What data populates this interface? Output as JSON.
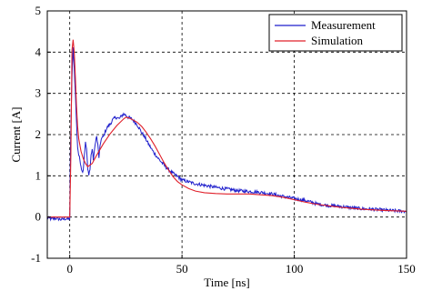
{
  "chart_data": {
    "type": "line",
    "xlabel": "Time [ns]",
    "ylabel": "Current [A]",
    "xlim": [
      -10,
      150
    ],
    "ylim": [
      -1,
      5
    ],
    "xticks": [
      0,
      50,
      100,
      150
    ],
    "yticks": [
      -1,
      0,
      1,
      2,
      3,
      4,
      5
    ],
    "grid": true,
    "legend_position": "top-right",
    "series": [
      {
        "name": "Measurement",
        "color": "#1f1fcc",
        "noisy": true,
        "x": [
          -10,
          -8,
          -6,
          -4,
          -2,
          -0.5,
          0,
          0.3,
          0.7,
          1.0,
          1.5,
          2.0,
          2.5,
          3,
          3.5,
          4,
          4.5,
          5,
          5.5,
          6,
          6.5,
          7,
          7.5,
          8,
          8.5,
          9,
          9.5,
          10,
          10.5,
          11,
          11.5,
          12,
          12.5,
          13,
          13.5,
          14,
          15,
          16,
          17,
          18,
          19,
          20,
          21,
          22,
          23,
          24,
          25,
          26,
          27,
          28,
          29,
          30,
          31,
          32,
          33,
          35,
          37,
          39,
          41,
          43,
          45,
          48,
          50,
          55,
          60,
          65,
          70,
          75,
          80,
          85,
          90,
          95,
          100,
          105,
          110,
          115,
          120,
          125,
          130,
          135,
          140,
          145,
          150
        ],
        "y": [
          -0.02,
          -0.05,
          -0.03,
          -0.06,
          -0.04,
          -0.05,
          -0.03,
          1.6,
          2.7,
          3.4,
          4.1,
          3.6,
          3.0,
          2.3,
          1.7,
          1.5,
          1.4,
          1.25,
          1.1,
          1.15,
          1.5,
          1.8,
          1.65,
          1.15,
          1.05,
          1.15,
          1.5,
          1.65,
          1.4,
          1.6,
          1.85,
          1.95,
          1.75,
          1.45,
          1.7,
          1.9,
          1.95,
          2.1,
          2.2,
          2.25,
          2.35,
          2.4,
          2.42,
          2.38,
          2.45,
          2.5,
          2.47,
          2.42,
          2.4,
          2.36,
          2.3,
          2.24,
          2.15,
          2.05,
          1.98,
          1.78,
          1.6,
          1.45,
          1.32,
          1.2,
          1.1,
          0.98,
          0.9,
          0.82,
          0.77,
          0.72,
          0.68,
          0.64,
          0.62,
          0.6,
          0.56,
          0.5,
          0.45,
          0.4,
          0.32,
          0.28,
          0.26,
          0.23,
          0.2,
          0.19,
          0.17,
          0.15,
          0.14
        ]
      },
      {
        "name": "Simulation",
        "color": "#e0202a",
        "noisy": false,
        "x": [
          -10,
          -2,
          0,
          0.5,
          1,
          1.5,
          2,
          2.5,
          3,
          3.5,
          4,
          5,
          6,
          7,
          8,
          10,
          12,
          15,
          18,
          21,
          24,
          25,
          26,
          28,
          30,
          32,
          34,
          36,
          38,
          40,
          42,
          44,
          46,
          48,
          50,
          53,
          56,
          60,
          65,
          70,
          75,
          80,
          85,
          90,
          95,
          100,
          105,
          110,
          120,
          130,
          140,
          150
        ],
        "y": [
          0,
          0,
          0,
          1.5,
          4.05,
          4.3,
          4.0,
          3.4,
          2.7,
          2.2,
          1.9,
          1.6,
          1.42,
          1.3,
          1.22,
          1.3,
          1.5,
          1.78,
          2.02,
          2.22,
          2.38,
          2.42,
          2.41,
          2.36,
          2.3,
          2.2,
          2.06,
          1.9,
          1.72,
          1.52,
          1.32,
          1.14,
          0.98,
          0.86,
          0.78,
          0.69,
          0.63,
          0.59,
          0.57,
          0.56,
          0.56,
          0.56,
          0.54,
          0.52,
          0.48,
          0.42,
          0.36,
          0.31,
          0.24,
          0.19,
          0.16,
          0.14
        ]
      }
    ]
  }
}
